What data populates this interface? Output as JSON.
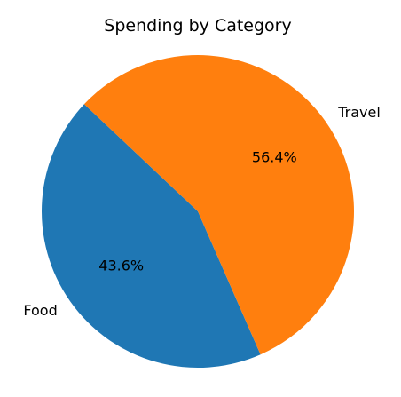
{
  "chart_data": {
    "type": "pie",
    "title": "Spending by Category",
    "categories": [
      "Food",
      "Travel"
    ],
    "values": [
      43.6,
      56.4
    ],
    "percent_labels": [
      "43.6%",
      "56.4%"
    ],
    "colors": [
      "#1f77b4",
      "#ff7f0e"
    ],
    "start_angle_deg": 136.7,
    "direction": "counterclockwise",
    "legend": "none"
  }
}
